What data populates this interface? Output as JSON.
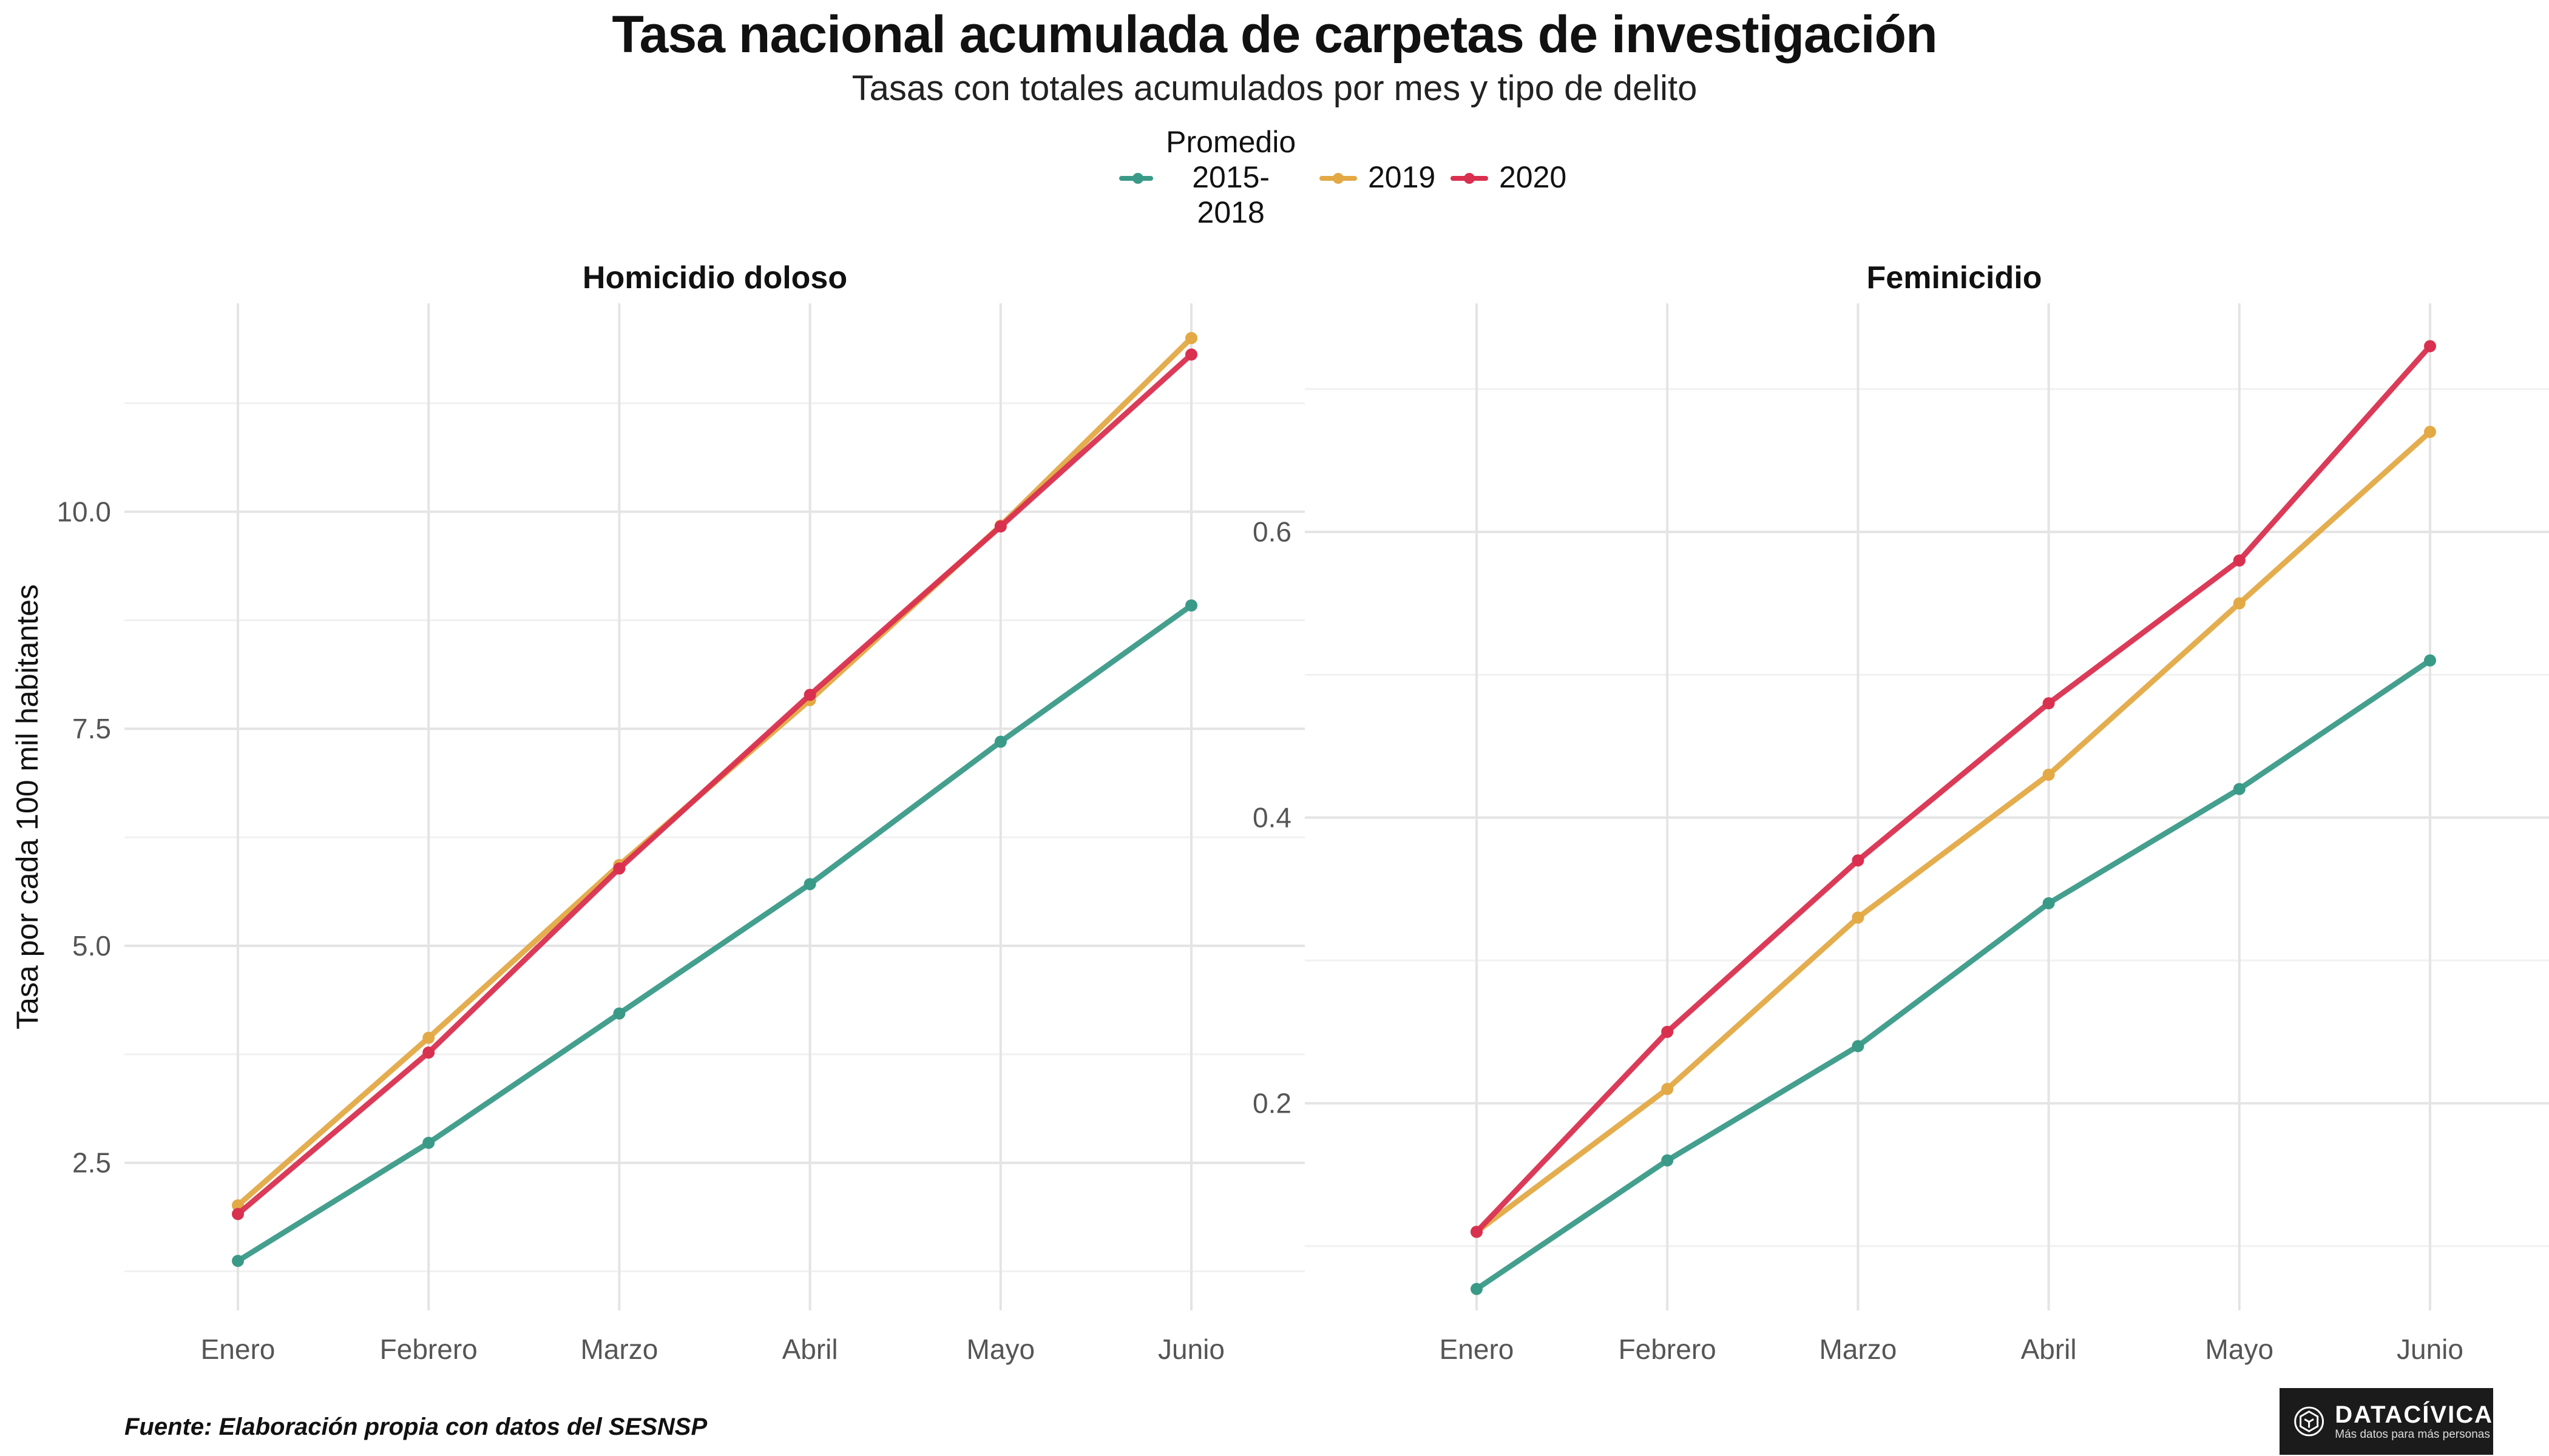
{
  "title": "Tasa nacional acumulada de carpetas de investigación",
  "subtitle": "Tasas con totales acumulados por mes y tipo de delito",
  "caption": "Fuente: Elaboración propia con datos del SESNSP",
  "logo": {
    "name": "DATACÍVICA",
    "tagline": "Más datos para más personas"
  },
  "legend": [
    {
      "label": "Promedio\n2015-2018",
      "color": "#3a9a88"
    },
    {
      "label": "2019",
      "color": "#e3a945"
    },
    {
      "label": "2020",
      "color": "#d9304f"
    }
  ],
  "chart_data": [
    {
      "type": "line",
      "title": "Homicidio doloso",
      "ylabel": "Tasa por cada 100 mil habitantes",
      "xlabel": "",
      "categories": [
        "Enero",
        "Febrero",
        "Marzo",
        "Abril",
        "Mayo",
        "Junio"
      ],
      "ylim": [
        0.8,
        12.4
      ],
      "yticks": [
        2.5,
        5.0,
        7.5,
        10.0
      ],
      "ytick_labels": [
        "2.5",
        "5.0",
        "7.5",
        "10.0"
      ],
      "yminor": [
        1.25,
        3.75,
        6.25,
        8.75,
        11.25
      ],
      "grid": true,
      "legend_position": "top",
      "series": [
        {
          "name": "Promedio 2015-2018",
          "color": "#3a9a88",
          "values": [
            1.37,
            2.73,
            4.22,
            5.71,
            7.35,
            8.92
          ]
        },
        {
          "name": "2019",
          "color": "#e3a945",
          "values": [
            2.01,
            3.94,
            5.93,
            7.83,
            9.84,
            12.0
          ]
        },
        {
          "name": "2020",
          "color": "#d9304f",
          "values": [
            1.91,
            3.77,
            5.89,
            7.89,
            9.83,
            11.81
          ]
        }
      ]
    },
    {
      "type": "line",
      "title": "Feminicidio",
      "ylabel": "",
      "xlabel": "",
      "categories": [
        "Enero",
        "Febrero",
        "Marzo",
        "Abril",
        "Mayo",
        "Junio"
      ],
      "ylim": [
        0.055,
        0.76
      ],
      "yticks": [
        0.2,
        0.4,
        0.6
      ],
      "ytick_labels": [
        "0.2",
        "0.4",
        "0.6"
      ],
      "yminor": [
        0.1,
        0.3,
        0.5,
        0.7
      ],
      "grid": true,
      "legend_position": "top",
      "series": [
        {
          "name": "Promedio 2015-2018",
          "color": "#3a9a88",
          "values": [
            0.07,
            0.16,
            0.24,
            0.34,
            0.42,
            0.51
          ]
        },
        {
          "name": "2019",
          "color": "#e3a945",
          "values": [
            0.11,
            0.21,
            0.33,
            0.43,
            0.55,
            0.67
          ]
        },
        {
          "name": "2020",
          "color": "#d9304f",
          "values": [
            0.11,
            0.25,
            0.37,
            0.48,
            0.58,
            0.73
          ]
        }
      ]
    }
  ]
}
